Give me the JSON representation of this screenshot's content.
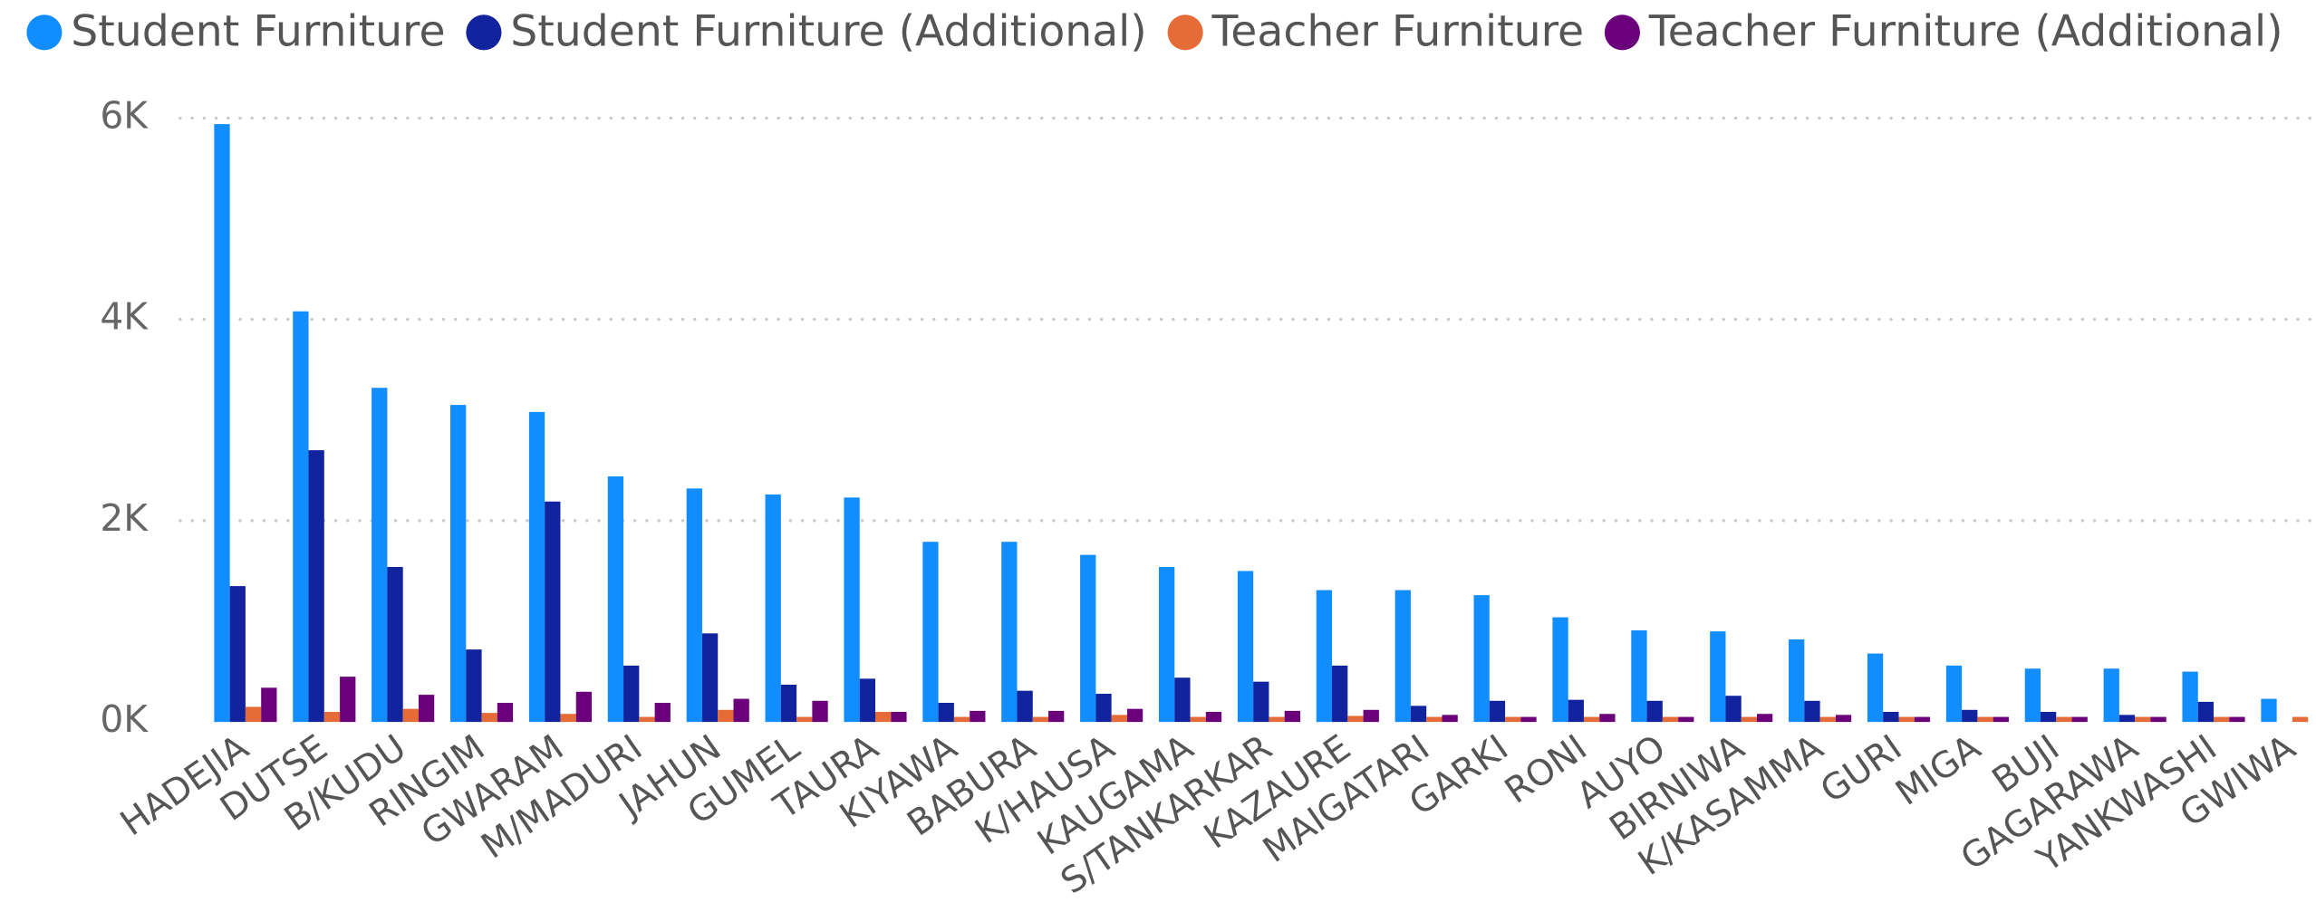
{
  "chart_data": {
    "type": "bar",
    "categories": [
      "HADEJIA",
      "DUTSE",
      "B/KUDU",
      "RINGIM",
      "GWARAM",
      "M/MADURI",
      "JAHUN",
      "GUMEL",
      "TAURA",
      "KIYAWA",
      "BABURA",
      "K/HAUSA",
      "KAUGAMA",
      "S/TANKARKAR",
      "KAZAURE",
      "MAIGATARI",
      "GARKI",
      "RONI",
      "AUYO",
      "BIRNIWA",
      "K/KASAMMA",
      "GURI",
      "MIGA",
      "BUJI",
      "GAGARAWA",
      "YANKWASHI",
      "GWIWA"
    ],
    "series": [
      {
        "name": "Student Furniture",
        "color": "#118DFF",
        "values": [
          5940,
          4080,
          3320,
          3150,
          3080,
          2440,
          2320,
          2260,
          2230,
          1790,
          1790,
          1660,
          1540,
          1500,
          1310,
          1310,
          1260,
          1040,
          910,
          900,
          820,
          680,
          560,
          530,
          530,
          500,
          230
        ]
      },
      {
        "name": "Student Furniture (Additional)",
        "color": "#12239E",
        "values": [
          1350,
          2700,
          1540,
          720,
          2190,
          560,
          880,
          370,
          430,
          190,
          310,
          280,
          440,
          400,
          560,
          160,
          210,
          220,
          210,
          260,
          210,
          100,
          120,
          100,
          70,
          200,
          0
        ]
      },
      {
        "name": "Teacher Furniture",
        "color": "#E66C37",
        "values": [
          150,
          100,
          130,
          90,
          80,
          50,
          120,
          50,
          100,
          50,
          50,
          70,
          50,
          50,
          60,
          50,
          50,
          50,
          50,
          50,
          50,
          50,
          50,
          50,
          50,
          50,
          50
        ]
      },
      {
        "name": "Teacher Furniture (Additional)",
        "color": "#6B007B",
        "values": [
          340,
          450,
          270,
          190,
          300,
          190,
          230,
          210,
          100,
          110,
          110,
          130,
          100,
          110,
          120,
          70,
          50,
          80,
          50,
          80,
          70,
          50,
          50,
          50,
          50,
          50,
          null
        ]
      }
    ],
    "ylim": [
      0,
      6000
    ],
    "yticks": [
      {
        "value": 0,
        "label": "0K"
      },
      {
        "value": 2000,
        "label": "2K"
      },
      {
        "value": 4000,
        "label": "4K"
      },
      {
        "value": 6000,
        "label": "6K"
      }
    ],
    "grid": true,
    "legend": "top"
  }
}
